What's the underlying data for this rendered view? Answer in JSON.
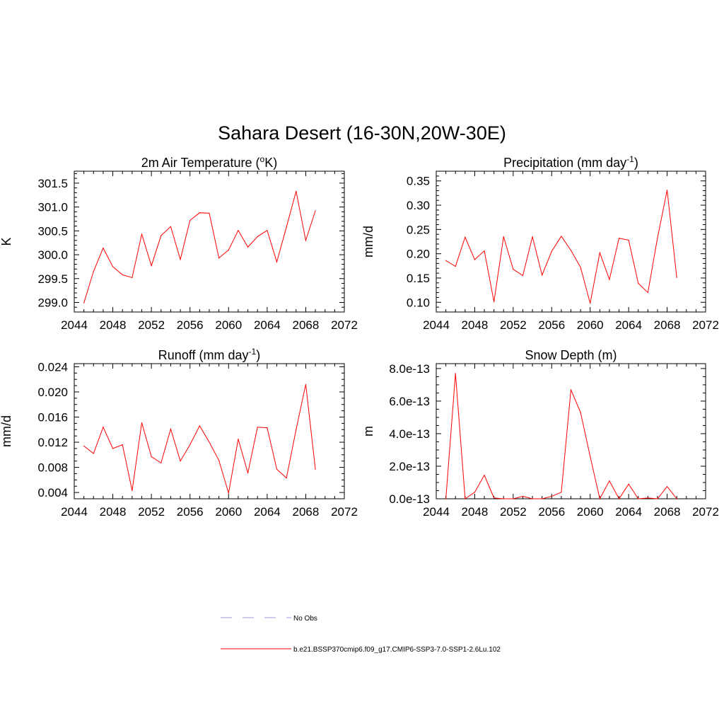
{
  "figure": {
    "title": "Sahara Desert (16-30N,20W-30E)"
  },
  "legend": {
    "position": "bottom-center",
    "entries": [
      {
        "label": "No Obs",
        "color": "#9999dd",
        "style": "dashed"
      },
      {
        "label": "b.e21.BSSP370cmip6.f09_g17.CMIP6-SSP3-7.0-SSP1-2.6Lu.102",
        "color": "#ff0000",
        "style": "solid"
      }
    ]
  },
  "chart_data": [
    {
      "type": "line",
      "id": "temperature",
      "title": "2m Air Temperature (",
      "title_sup": "o",
      "title_end": "K)",
      "ylabel": "K",
      "xlim": [
        2044,
        2072
      ],
      "xticks": [
        2044,
        2048,
        2052,
        2056,
        2060,
        2064,
        2068,
        2072
      ],
      "ylim": [
        298.8,
        301.75
      ],
      "yticks": [
        299.0,
        299.5,
        300.0,
        300.5,
        301.0,
        301.5
      ],
      "ytick_labels": [
        "299.0",
        "299.5",
        "300.0",
        "300.5",
        "301.0",
        "301.5"
      ],
      "yminor_step": 0.1,
      "series": [
        {
          "color": "#ff0000",
          "x": [
            2045,
            2046,
            2047,
            2048,
            2049,
            2050,
            2051,
            2052,
            2053,
            2054,
            2055,
            2056,
            2057,
            2058,
            2059,
            2060,
            2061,
            2062,
            2063,
            2064,
            2065,
            2066,
            2067,
            2068,
            2069
          ],
          "values": [
            298.99,
            299.65,
            300.14,
            299.75,
            299.58,
            299.52,
            300.43,
            299.77,
            300.4,
            300.59,
            299.9,
            300.72,
            300.88,
            300.87,
            299.93,
            300.1,
            300.51,
            300.16,
            300.38,
            300.51,
            299.85,
            300.58,
            301.33,
            300.3,
            300.92
          ]
        }
      ]
    },
    {
      "type": "line",
      "id": "precipitation",
      "title": "Precipitation (mm day",
      "title_sup": "-1",
      "title_end": ")",
      "ylabel": "mm/d",
      "xlim": [
        2044,
        2072
      ],
      "xticks": [
        2044,
        2048,
        2052,
        2056,
        2060,
        2064,
        2068,
        2072
      ],
      "ylim": [
        0.08,
        0.37
      ],
      "yticks": [
        0.1,
        0.15,
        0.2,
        0.25,
        0.3,
        0.35
      ],
      "ytick_labels": [
        "0.10",
        "0.15",
        "0.20",
        "0.25",
        "0.30",
        "0.35"
      ],
      "yminor_step": 0.01,
      "series": [
        {
          "color": "#ff0000",
          "x": [
            2045,
            2046,
            2047,
            2048,
            2049,
            2050,
            2051,
            2052,
            2053,
            2054,
            2055,
            2056,
            2057,
            2058,
            2059,
            2060,
            2061,
            2062,
            2063,
            2064,
            2065,
            2066,
            2067,
            2068,
            2069
          ],
          "values": [
            0.186,
            0.174,
            0.234,
            0.188,
            0.206,
            0.101,
            0.235,
            0.168,
            0.155,
            0.235,
            0.156,
            0.205,
            0.236,
            0.207,
            0.172,
            0.098,
            0.202,
            0.147,
            0.232,
            0.228,
            0.139,
            0.12,
            0.233,
            0.331,
            0.151
          ]
        }
      ]
    },
    {
      "type": "line",
      "id": "runoff",
      "title": "Runoff (mm day",
      "title_sup": "-1",
      "title_end": ")",
      "ylabel": "mm/d",
      "xlim": [
        2044,
        2072
      ],
      "xticks": [
        2044,
        2048,
        2052,
        2056,
        2060,
        2064,
        2068,
        2072
      ],
      "ylim": [
        0.003,
        0.0245
      ],
      "yticks": [
        0.004,
        0.008,
        0.012,
        0.016,
        0.02,
        0.024
      ],
      "ytick_labels": [
        "0.004",
        "0.008",
        "0.012",
        "0.016",
        "0.020",
        "0.024"
      ],
      "yminor_step": 0.001,
      "series": [
        {
          "color": "#ff0000",
          "x": [
            2045,
            2046,
            2047,
            2048,
            2049,
            2050,
            2051,
            2052,
            2053,
            2054,
            2055,
            2056,
            2057,
            2058,
            2059,
            2060,
            2061,
            2062,
            2063,
            2064,
            2065,
            2066,
            2067,
            2068,
            2069
          ],
          "values": [
            0.0114,
            0.0102,
            0.0144,
            0.011,
            0.0116,
            0.0043,
            0.0151,
            0.0097,
            0.0087,
            0.0141,
            0.009,
            0.0116,
            0.0146,
            0.012,
            0.0091,
            0.0039,
            0.0125,
            0.0071,
            0.0144,
            0.0143,
            0.0077,
            0.0063,
            0.014,
            0.0212,
            0.0077
          ]
        }
      ]
    },
    {
      "type": "line",
      "id": "snow",
      "title": "Snow Depth (m)",
      "title_sup": "",
      "title_end": "",
      "ylabel": "m",
      "xlim": [
        2044,
        2072
      ],
      "xticks": [
        2044,
        2048,
        2052,
        2056,
        2060,
        2064,
        2068,
        2072
      ],
      "ylim": [
        0,
        8.3e-13
      ],
      "yticks": [
        0,
        2e-13,
        4e-13,
        6e-13,
        8e-13
      ],
      "ytick_labels": [
        "0.0e-13",
        "2.0e-13",
        "4.0e-13",
        "6.0e-13",
        "8.0e-13"
      ],
      "yminor_step": 5e-14,
      "series": [
        {
          "color": "#ff0000",
          "x": [
            2045,
            2046,
            2047,
            2048,
            2049,
            2050,
            2051,
            2052,
            2053,
            2054,
            2055,
            2056,
            2057,
            2058,
            2059,
            2060,
            2061,
            2062,
            2063,
            2064,
            2065,
            2066,
            2067,
            2068,
            2069
          ],
          "values": [
            0,
            7.7e-13,
            0,
            4e-14,
            1.45e-13,
            5e-15,
            0,
            0,
            1.5e-14,
            0,
            0,
            1.5e-14,
            4e-14,
            6.7e-13,
            5.3e-13,
            2.6e-13,
            0,
            1.1e-13,
            0,
            9e-14,
            0,
            5e-15,
            0,
            7.5e-14,
            0
          ]
        }
      ]
    }
  ]
}
